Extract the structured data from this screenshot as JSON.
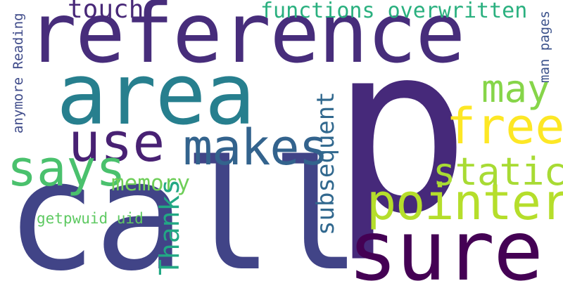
{
  "words": [
    {
      "text": "p",
      "color": "#46297a"
    },
    {
      "text": "call",
      "color": "#414487"
    },
    {
      "text": "reference",
      "color": "#472d7b"
    },
    {
      "text": "area",
      "color": "#277f8e"
    },
    {
      "text": "sure",
      "color": "#440154"
    },
    {
      "text": "pointer",
      "color": "#b5de2b"
    },
    {
      "text": "makes",
      "color": "#33638d"
    },
    {
      "text": "use",
      "color": "#482173"
    },
    {
      "text": "says",
      "color": "#4ac16d"
    },
    {
      "text": "free",
      "color": "#fde725"
    },
    {
      "text": "static",
      "color": "#a8db34"
    },
    {
      "text": "may",
      "color": "#86d549"
    },
    {
      "text": "touch",
      "color": "#482878"
    },
    {
      "text": "functions overwritten",
      "color": "#2ab07f"
    },
    {
      "text": "memory",
      "color": "#6ece58"
    },
    {
      "text": "subsequent",
      "color": "#31688e"
    },
    {
      "text": "Thanks",
      "color": "#22a884"
    },
    {
      "text": "getpwuid uid",
      "color": "#5ec962"
    },
    {
      "text": "anymore Reading",
      "color": "#3e4a89"
    },
    {
      "text": "man pages",
      "color": "#3b528b"
    }
  ]
}
